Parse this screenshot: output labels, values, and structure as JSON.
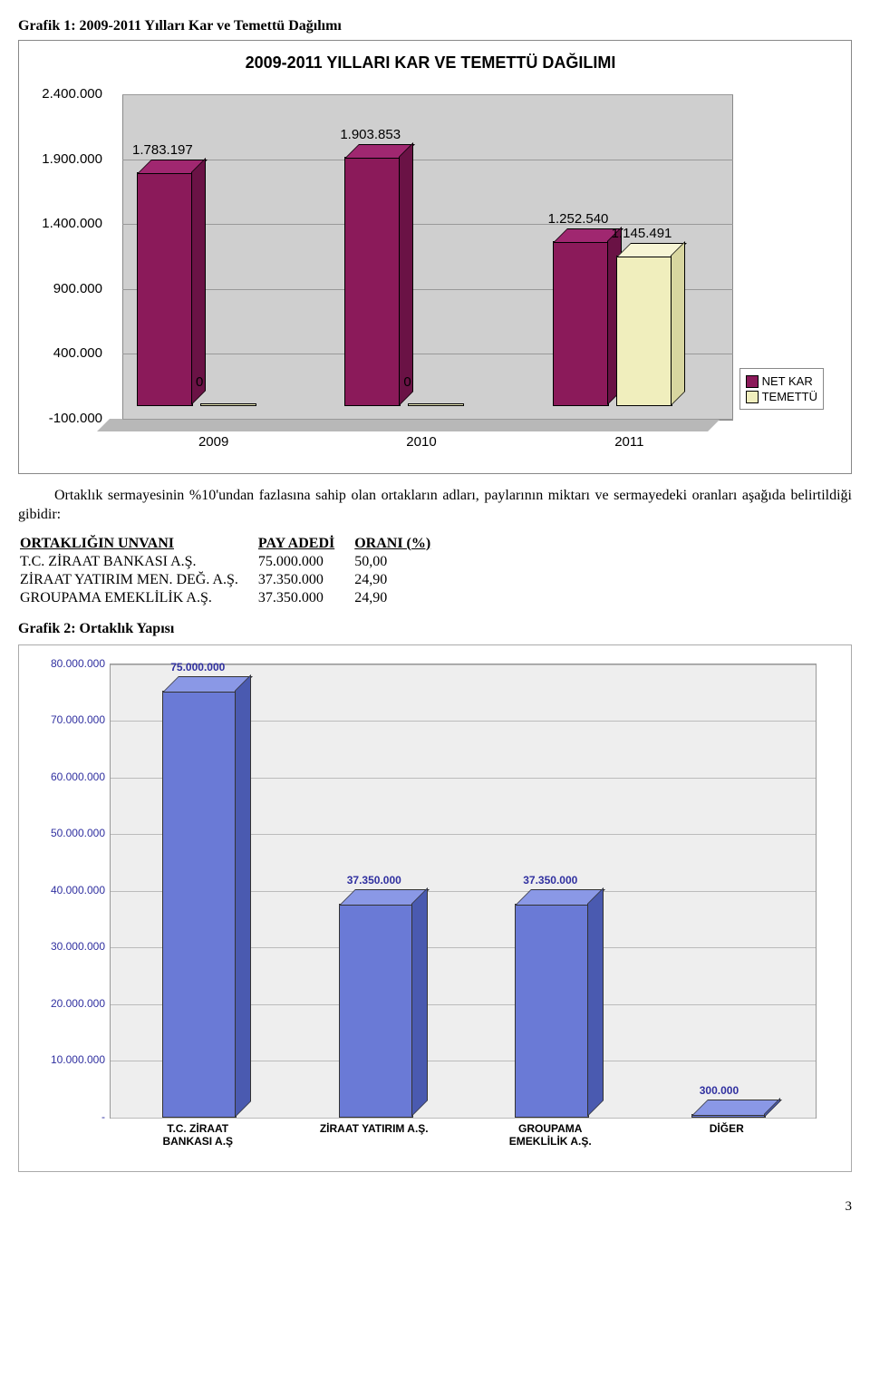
{
  "page_number": "3",
  "chart1_heading": "Grafik 1: 2009-2011 Yılları Kar ve Temettü Dağılımı",
  "chart1": {
    "type": "bar",
    "title": "2009-2011 YILLARI KAR VE TEMETTÜ DAĞILIMI",
    "categories": [
      "2009",
      "2010",
      "2011"
    ],
    "series": [
      {
        "name": "NET KAR",
        "color_front": "#8b1a5a",
        "color_top": "#a02770",
        "color_side": "#6a1245",
        "values": [
          1783197,
          1903853,
          1252540
        ],
        "labels": [
          "1.783.197",
          "1.903.853",
          "1.252.540"
        ]
      },
      {
        "name": "TEMETTÜ",
        "color_front": "#f0eebd",
        "color_top": "#f7f5d5",
        "color_side": "#d8d6a0",
        "values": [
          0,
          0,
          1145491
        ],
        "labels": [
          "0",
          "0",
          "1.145.491"
        ]
      }
    ],
    "y_ticks": [
      -100000,
      400000,
      900000,
      1400000,
      1900000,
      2400000
    ],
    "y_tick_labels": [
      "-100.000",
      "400.000",
      "900.000",
      "1.400.000",
      "1.900.000",
      "2.400.000"
    ],
    "ymin": -100000,
    "ymax": 2400000,
    "legend_labels": [
      "NET KAR",
      "TEMETTÜ"
    ],
    "font_family": "Arial",
    "label_fontsize": 15,
    "title_fontsize": 18
  },
  "body_paragraph": "Ortaklık sermayesinin %10'undan fazlasına sahip olan ortakların adları, paylarının miktarı ve sermayedeki oranları aşağıda belirtildiği gibidir:",
  "share_table": {
    "columns": [
      "ORTAKLIĞIN UNVANI",
      "PAY ADEDİ",
      "ORANI (%)"
    ],
    "rows": [
      [
        "T.C. ZİRAAT BANKASI A.Ş.",
        "75.000.000",
        "50,00"
      ],
      [
        "ZİRAAT YATIRIM MEN. DEĞ. A.Ş.",
        "37.350.000",
        "24,90"
      ],
      [
        "GROUPAMA EMEKLİLİK A.Ş.",
        "37.350.000",
        "24,90"
      ]
    ]
  },
  "chart2_heading": "Grafik 2: Ortaklık Yapısı",
  "chart2": {
    "type": "bar",
    "categories": [
      "T.C. ZİRAAT BANKASI A.Ş",
      "ZİRAAT YATIRIM A.Ş.",
      "GROUPAMA EMEKLİLİK A.Ş.",
      "DİĞER"
    ],
    "values": [
      75000000,
      37350000,
      37350000,
      300000
    ],
    "value_labels": [
      "75.000.000",
      "37.350.000",
      "37.350.000",
      "300.000"
    ],
    "bar_color_front": "#6a7ad6",
    "bar_color_top": "#8a98e6",
    "bar_color_side": "#4a5ab0",
    "background_color": "#eeeeee",
    "grid_color": "#bbbbbb",
    "y_ticks": [
      0,
      10000000,
      20000000,
      30000000,
      40000000,
      50000000,
      60000000,
      70000000,
      80000000
    ],
    "y_tick_labels": [
      "-",
      "10.000.000",
      "20.000.000",
      "30.000.000",
      "40.000.000",
      "50.000.000",
      "60.000.000",
      "70.000.000",
      "80.000.000"
    ],
    "ymin": 0,
    "ymax": 80000000,
    "label_color": "#3030a0",
    "font_family": "Arial",
    "label_fontsize": 12
  }
}
